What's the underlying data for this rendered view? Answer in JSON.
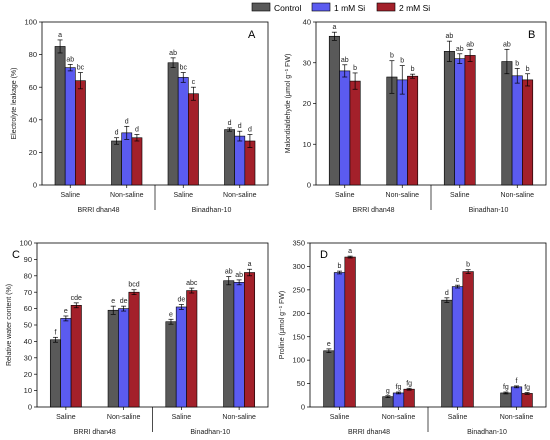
{
  "legend": {
    "items": [
      {
        "name": "Control",
        "color": "#595959"
      },
      {
        "name": "1 mM Si",
        "color": "#5b5bf0"
      },
      {
        "name": "2 mM Si",
        "color": "#a3202a"
      }
    ]
  },
  "chart_data": [
    {
      "type": "bar",
      "panel": "A",
      "ylabel": "Electrolyte leakage (%)",
      "ylim": [
        0,
        100
      ],
      "yticks": [
        0,
        20,
        40,
        60,
        80,
        100
      ],
      "group_labels": [
        "Saline",
        "Non-saline",
        "Saline",
        "Non-saline"
      ],
      "cultivars": [
        "BRRI dhan48",
        "Binadhan-10"
      ],
      "values": [
        [
          85,
          72,
          64
        ],
        [
          27,
          32,
          29
        ],
        [
          75,
          66,
          56
        ],
        [
          34,
          30,
          27
        ]
      ],
      "errors": [
        [
          4,
          2,
          5
        ],
        [
          2,
          4,
          2
        ],
        [
          3,
          3,
          4
        ],
        [
          1,
          3,
          4
        ]
      ],
      "letters": [
        [
          "a",
          "ab",
          "bc"
        ],
        [
          "d",
          "d",
          "d"
        ],
        [
          "ab",
          "bc",
          "c"
        ],
        [
          "d",
          "d",
          "d"
        ]
      ]
    },
    {
      "type": "bar",
      "panel": "B",
      "ylabel": "Malondialdehyde (μmol g⁻¹ FW)",
      "ylim": [
        0,
        40
      ],
      "yticks": [
        0,
        10,
        20,
        30,
        40
      ],
      "group_labels": [
        "Saline",
        "Non-saline",
        "Saline",
        "Non-saline"
      ],
      "cultivars": [
        "BRRI dhan48",
        "Binadhan-10"
      ],
      "values": [
        [
          36.5,
          28,
          25.5
        ],
        [
          26.5,
          25.8,
          26.7
        ],
        [
          32.8,
          31,
          31.8
        ],
        [
          30.3,
          26.8,
          25.8
        ]
      ],
      "errors": [
        [
          1,
          1.5,
          2
        ],
        [
          4,
          3.5,
          0.5
        ],
        [
          2.5,
          1.2,
          1.5
        ],
        [
          3,
          1.8,
          1.5
        ]
      ],
      "letters": [
        [
          "a",
          "ab",
          "b"
        ],
        [
          "b",
          "b",
          "b"
        ],
        [
          "ab",
          "ab",
          "ab"
        ],
        [
          "ab",
          "b",
          "b"
        ]
      ]
    },
    {
      "type": "bar",
      "panel": "C",
      "ylabel": "Relative water content (%)",
      "ylim": [
        0,
        100
      ],
      "yticks": [
        0,
        10,
        20,
        30,
        40,
        50,
        60,
        70,
        80,
        90,
        100
      ],
      "group_labels": [
        "Saline",
        "Non-saline",
        "Saline",
        "Non-saline"
      ],
      "cultivars": [
        "BRRI dhan48",
        "Binadhan-10"
      ],
      "values": [
        [
          41,
          54,
          62
        ],
        [
          59,
          60,
          70
        ],
        [
          52,
          61,
          71
        ],
        [
          77,
          76,
          82
        ]
      ],
      "errors": [
        [
          1.5,
          1.5,
          1.5
        ],
        [
          2.5,
          1.5,
          1.5
        ],
        [
          1.5,
          1.5,
          1.5
        ],
        [
          2.5,
          1.5,
          2
        ]
      ],
      "letters": [
        [
          "f",
          "e",
          "cde"
        ],
        [
          "e",
          "de",
          "bcd"
        ],
        [
          "e",
          "de",
          "abc"
        ],
        [
          "ab",
          "ab",
          "a"
        ]
      ]
    },
    {
      "type": "bar",
      "panel": "D",
      "ylabel": "Proline (μmol g⁻¹ FW)",
      "ylim": [
        0,
        350
      ],
      "yticks": [
        0,
        50,
        100,
        150,
        200,
        250,
        300,
        350
      ],
      "group_labels": [
        "Saline",
        "Non-saline",
        "Saline",
        "Non-saline"
      ],
      "cultivars": [
        "BRRI dhan48",
        "Binadhan-10"
      ],
      "values": [
        [
          120,
          287,
          320
        ],
        [
          22,
          30,
          38
        ],
        [
          228,
          257,
          289
        ],
        [
          30,
          43,
          29
        ]
      ],
      "errors": [
        [
          4,
          3,
          2
        ],
        [
          2,
          2,
          2
        ],
        [
          5,
          3,
          4
        ],
        [
          2,
          2,
          2
        ]
      ],
      "letters": [
        [
          "e",
          "b",
          "a"
        ],
        [
          "g",
          "fg",
          "fg"
        ],
        [
          "d",
          "c",
          "b"
        ],
        [
          "fg",
          "f",
          "fg"
        ]
      ]
    }
  ]
}
